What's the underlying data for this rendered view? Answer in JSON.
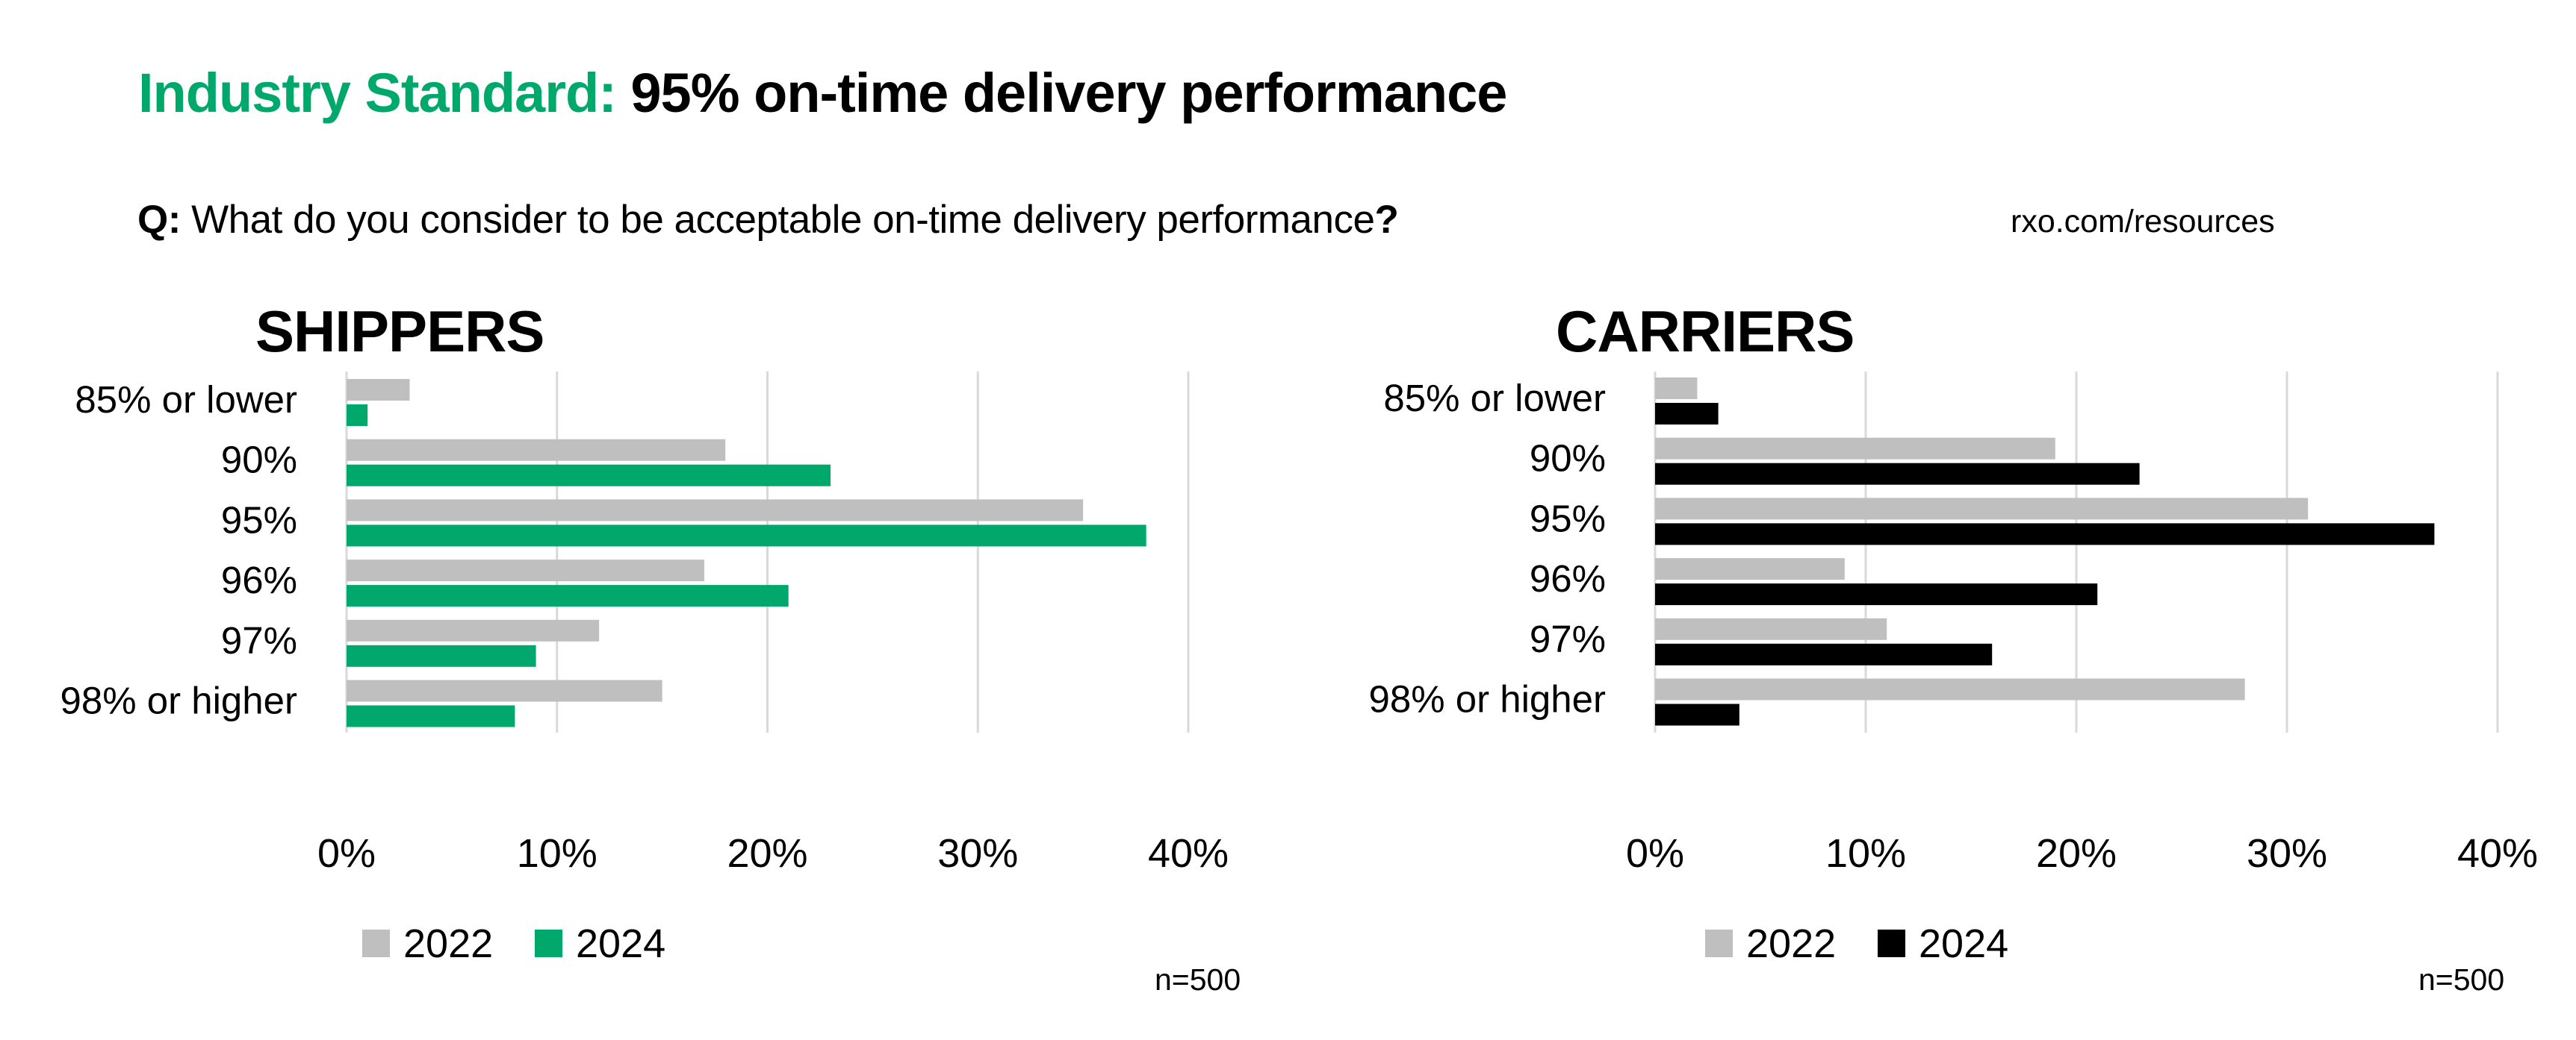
{
  "header": {
    "title_accent": "Industry Standard:",
    "title_rest": " 95% on-time delivery performance",
    "question_prefix": "Q:",
    "question_text": " What do you consider to be acceptable on-time delivery performance",
    "question_mark": "?",
    "source": "rxo.com/resources"
  },
  "colors": {
    "accent_green": "#00a86b",
    "gray_2022": "#bfbfbf",
    "black_2024": "#000000",
    "gridline": "#d9d9d9"
  },
  "chart_data": [
    {
      "type": "bar",
      "orientation": "horizontal",
      "title": "SHIPPERS",
      "categories": [
        "85% or lower",
        "90%",
        "95%",
        "96%",
        "97%",
        "98% or higher"
      ],
      "series": [
        {
          "name": "2022",
          "color": "#bfbfbf",
          "values": [
            3,
            18,
            35,
            17,
            12,
            15
          ]
        },
        {
          "name": "2024",
          "color": "#00a86b",
          "values": [
            1,
            23,
            38,
            21,
            9,
            8
          ]
        }
      ],
      "xlabel": "",
      "ylabel": "",
      "xlim": [
        0,
        40
      ],
      "xticks": [
        0,
        10,
        20,
        30,
        40
      ],
      "xtick_labels": [
        "0%",
        "10%",
        "20%",
        "30%",
        "40%"
      ],
      "grid": true,
      "legend": "bottom-left",
      "note": "n=500"
    },
    {
      "type": "bar",
      "orientation": "horizontal",
      "title": "CARRIERS",
      "categories": [
        "85% or lower",
        "90%",
        "95%",
        "96%",
        "97%",
        "98% or higher"
      ],
      "series": [
        {
          "name": "2022",
          "color": "#bfbfbf",
          "values": [
            2,
            19,
            31,
            9,
            11,
            28
          ]
        },
        {
          "name": "2024",
          "color": "#000000",
          "values": [
            3,
            23,
            37,
            21,
            16,
            4
          ]
        }
      ],
      "xlabel": "",
      "ylabel": "",
      "xlim": [
        0,
        40
      ],
      "xticks": [
        0,
        10,
        20,
        30,
        40
      ],
      "xtick_labels": [
        "0%",
        "10%",
        "20%",
        "30%",
        "40%"
      ],
      "grid": true,
      "legend": "bottom-left",
      "note": "n=500"
    }
  ]
}
